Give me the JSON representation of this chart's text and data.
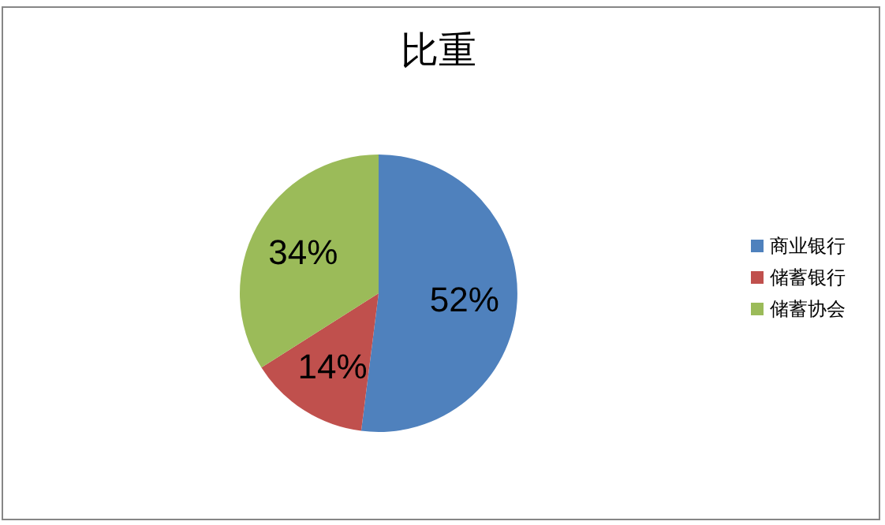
{
  "chart_data": {
    "type": "pie",
    "title": "比重",
    "categories": [
      "商业银行",
      "储蓄银行",
      "储蓄协会"
    ],
    "values": [
      52,
      14,
      34
    ],
    "colors": [
      "#4f81bd",
      "#c0504d",
      "#9bbb59"
    ],
    "value_labels": [
      "52%",
      "14%",
      "34%"
    ],
    "legend": "right"
  }
}
